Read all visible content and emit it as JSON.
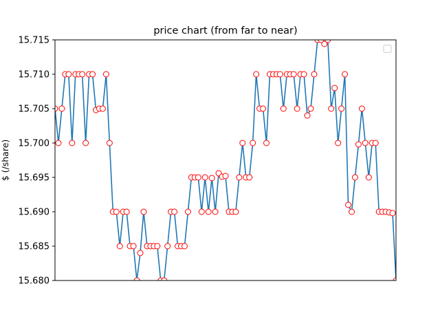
{
  "chart_data": {
    "type": "line",
    "title": "price chart (from far to near)",
    "xlabel": "",
    "ylabel": "$ (/share)",
    "ylim": [
      15.68,
      15.715
    ],
    "yticks": [
      "15.680",
      "15.685",
      "15.690",
      "15.695",
      "15.700",
      "15.705",
      "15.710",
      "15.715"
    ],
    "grid": false,
    "legend": "top-right (empty)",
    "line_color": "#1f77b4",
    "marker_edge_color": "#ff0000",
    "marker_face_color": "#ffffff",
    "series": [
      {
        "values": [
          15.705,
          15.7,
          15.705,
          15.71,
          15.71,
          15.7,
          15.71,
          15.71,
          15.71,
          15.7,
          15.71,
          15.71,
          15.7048,
          15.705,
          15.705,
          15.71,
          15.7,
          15.69,
          15.69,
          15.685,
          15.69,
          15.69,
          15.685,
          15.685,
          15.68,
          15.684,
          15.69,
          15.685,
          15.685,
          15.685,
          15.685,
          15.68,
          15.68,
          15.685,
          15.69,
          15.69,
          15.685,
          15.685,
          15.685,
          15.69,
          15.695,
          15.695,
          15.695,
          15.69,
          15.695,
          15.69,
          15.6949,
          15.69,
          15.6956,
          15.6951,
          15.6952,
          15.69,
          15.69,
          15.69,
          15.695,
          15.7,
          15.695,
          15.695,
          15.7,
          15.71,
          15.705,
          15.705,
          15.7,
          15.71,
          15.71,
          15.71,
          15.71,
          15.705,
          15.71,
          15.71,
          15.71,
          15.705,
          15.71,
          15.71,
          15.704,
          15.705,
          15.71,
          15.715,
          15.715,
          15.7144,
          15.715,
          15.705,
          15.708,
          15.7,
          15.705,
          15.71,
          15.691,
          15.69,
          15.695,
          15.6998,
          15.705,
          15.7,
          15.695,
          15.7,
          15.7,
          15.69,
          15.69,
          15.69,
          15.6899,
          15.6898,
          15.68
        ]
      }
    ]
  }
}
